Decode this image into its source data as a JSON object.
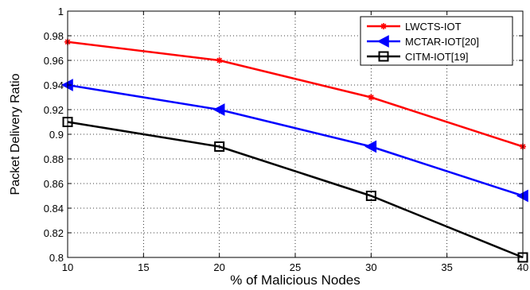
{
  "chart_data": {
    "type": "line",
    "xlabel": "% of Malicious Nodes",
    "ylabel": "Packet Delivery Ratio",
    "xlim": [
      10,
      40
    ],
    "ylim": [
      0.8,
      1.0
    ],
    "x_ticks": [
      "10",
      "15",
      "20",
      "25",
      "30",
      "35",
      "40"
    ],
    "y_ticks": [
      "0.8",
      "0.82",
      "0.84",
      "0.86",
      "0.88",
      "0.9",
      "0.92",
      "0.94",
      "0.96",
      "0.98",
      "1"
    ],
    "grid": true,
    "grid_style": "dotted",
    "legend_position": "top-right",
    "x": [
      10,
      20,
      30,
      40
    ],
    "series": [
      {
        "name": "LWCTS-IOT",
        "values": [
          0.975,
          0.96,
          0.93,
          0.89
        ],
        "color": "#ff0000",
        "marker": "star"
      },
      {
        "name": "MCTAR-IOT[20]",
        "values": [
          0.94,
          0.92,
          0.89,
          0.85
        ],
        "color": "#0000ff",
        "marker": "triangle-left"
      },
      {
        "name": "CITM-IOT[19]",
        "values": [
          0.91,
          0.89,
          0.85,
          0.8
        ],
        "color": "#000000",
        "marker": "square"
      }
    ]
  }
}
